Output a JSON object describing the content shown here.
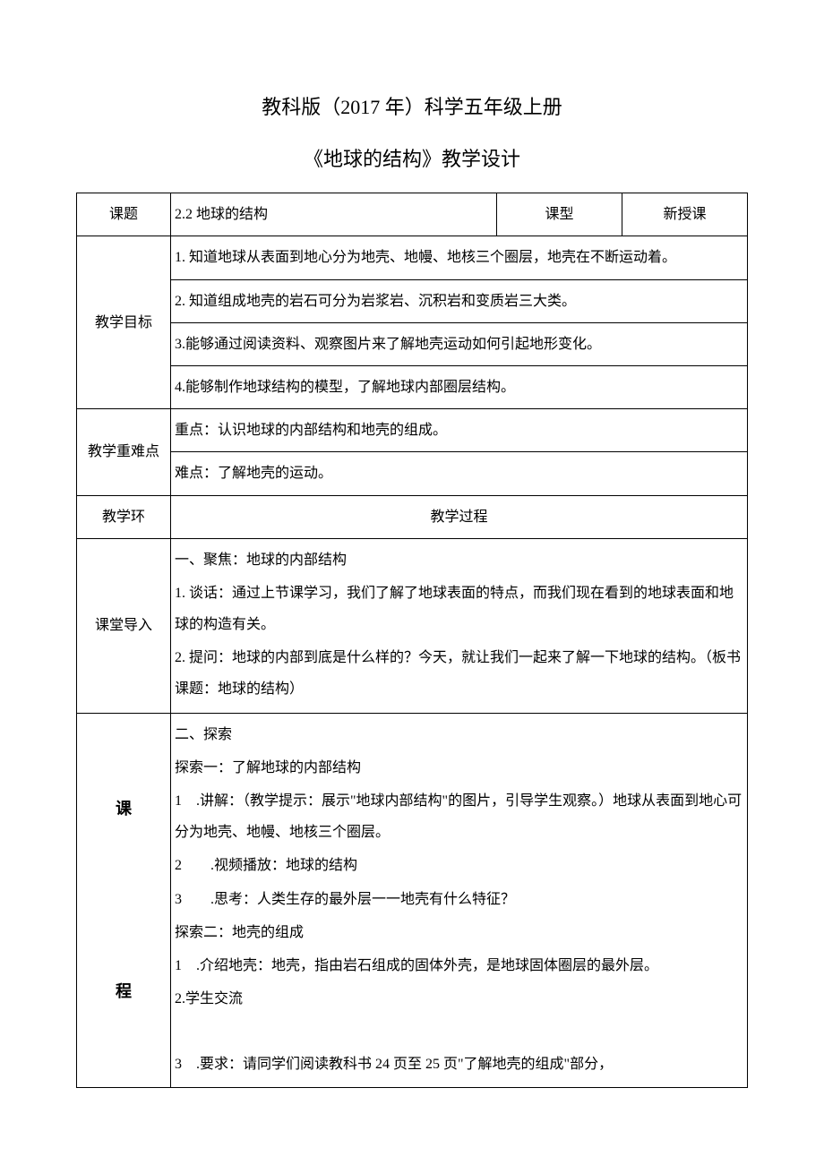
{
  "title_main": "教科版（2017 年）科学五年级上册",
  "title_sub": "《地球的结构》教学设计",
  "labels": {
    "topic": "课题",
    "course_type": "课型",
    "objectives": "教学目标",
    "key_points": "教学重难点",
    "teaching_segment": "教学环",
    "intro": "课堂导入",
    "lesson_ke": "课",
    "lesson_cheng": "程"
  },
  "header_row": {
    "topic_value": "2.2 地球的结构",
    "course_type_value": "新授课"
  },
  "objectives": {
    "item1": "1. 知道地球从表面到地心分为地壳、地幔、地核三个圈层，地壳在不断运动着。",
    "item2": "2. 知道组成地壳的岩石可分为岩浆岩、沉积岩和变质岩三大类。",
    "item3": "3.能够通过阅读资料、观察图片来了解地壳运动如何引起地形变化。",
    "item4": "4.能够制作地球结构的模型，了解地球内部圈层结构。"
  },
  "key_points": {
    "important": "重点：认识地球的内部结构和地壳的组成。",
    "difficult": "难点：了解地壳的运动。"
  },
  "process_header": "教学过程",
  "intro_section": {
    "heading": "一、聚焦：地球的内部结构",
    "line1": "1. 谈话：通过上节课学习，我们了解了地球表面的特点，而我们现在看到的地球表面和地球的构造有关。",
    "line2": "2. 提问：地球的内部到底是什么样的？今天，就让我们一起来了解一下地球的结构。（板书课题：地球的结构）"
  },
  "explore_section": {
    "heading": "二、探索",
    "sub1_heading": "探索一：了解地球的内部结构",
    "sub1_item1": "1　.讲解：（教学提示：展示\"地球内部结构\"的图片，引导学生观察。）地球从表面到地心可分为地壳、地幔、地核三个圈层。",
    "sub1_item2": "2　　.视频播放：地球的结构",
    "sub1_item3": "3　　.思考：人类生存的最外层一一地壳有什么特征？",
    "sub2_heading": "探索二：地壳的组成",
    "sub2_item1": "1　.介绍地壳：地壳，指由岩石组成的固体外壳，是地球固体圈层的最外层。",
    "sub2_item2": "2.学生交流",
    "sub2_item3": "3　.要求：请同学们阅读教科书 24 页至 25 页\"了解地壳的组成\"部分，"
  }
}
